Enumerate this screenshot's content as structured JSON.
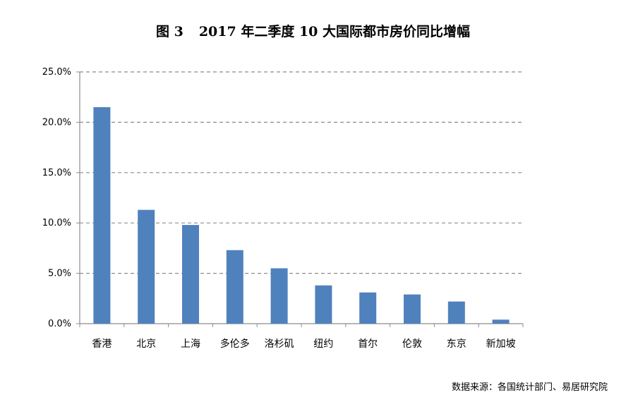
{
  "figure": {
    "label": "图 3",
    "title": "2017 年二季度 10 大国际都市房价同比增幅",
    "source": "数据来源：各国统计部门、易居研究院"
  },
  "chart_data": {
    "type": "bar",
    "title": "2017 年二季度 10 大国际都市房价同比增幅",
    "xlabel": "",
    "ylabel": "",
    "categories": [
      "香港",
      "北京",
      "上海",
      "多伦多",
      "洛杉矶",
      "纽约",
      "首尔",
      "伦敦",
      "东京",
      "新加坡"
    ],
    "values": [
      21.5,
      11.3,
      9.8,
      7.3,
      5.5,
      3.8,
      3.1,
      2.9,
      2.2,
      0.4
    ],
    "ylim": [
      0,
      25
    ],
    "yticks": [
      0,
      5,
      10,
      15,
      20,
      25
    ],
    "ytick_labels": [
      "0.0%",
      "5.0%",
      "10.0%",
      "15.0%",
      "20.0%",
      "25.0%"
    ],
    "grid": true,
    "legend": "none",
    "colors": {
      "bar": "#4f81bd",
      "grid": "#8c8c8c",
      "axis": "#8c8c8c"
    }
  }
}
